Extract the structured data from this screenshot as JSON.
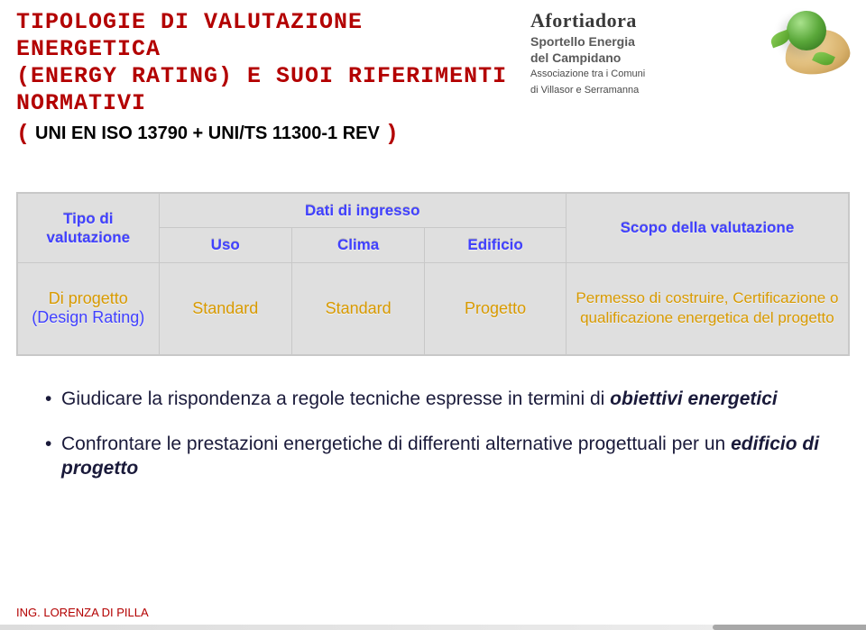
{
  "header": {
    "title_l1": "TIPOLOGIE DI VALUTAZIONE ENERGETICA",
    "title_l2": "(ENERGY RATING) E SUOI RIFERIMENTI",
    "title_l3": "NORMATIVI",
    "paren_open": "(",
    "standards": "UNI EN ISO 13790 + UNI/TS 11300-1 REV",
    "paren_close": ")"
  },
  "logo": {
    "brand": "Afortiadora",
    "sub1_a": "Sportello Energia",
    "sub1_b": "del Campidano",
    "sub2_a": "Associazione tra i Comuni",
    "sub2_b": "di Villasor e Serramanna"
  },
  "table": {
    "head": {
      "col1": "Tipo di valutazione",
      "merge_top": "Dati di ingresso",
      "uso": "Uso",
      "clima": "Clima",
      "edificio": "Edificio",
      "scopo": "Scopo della valutazione"
    },
    "row": {
      "c1a": "Di progetto",
      "c1b": "(Design Rating)",
      "c2": "Standard",
      "c3": "Standard",
      "c4": "Progetto",
      "c5": "Permesso di costruire, Certificazione o qualificazione energetica del progetto"
    },
    "col_widths": {
      "c1": "17%",
      "c2": "16%",
      "c3": "16%",
      "c4": "17%",
      "c5": "34%"
    }
  },
  "bullets": {
    "b1_a": "Giudicare la rispondenza a regole tecniche espresse in termini di ",
    "b1_b": "obiettivi energetici",
    "b2_a": "Confrontare le prestazioni energetiche di differenti alternative progettuali per un ",
    "b2_b": "edificio di progetto"
  },
  "footer": {
    "author": "ING. LORENZA DI PILLA"
  },
  "colors": {
    "title": "#b30000",
    "header_text": "#4040ff",
    "cell_text": "#d89a00",
    "table_bg": "#dfdfdf"
  }
}
